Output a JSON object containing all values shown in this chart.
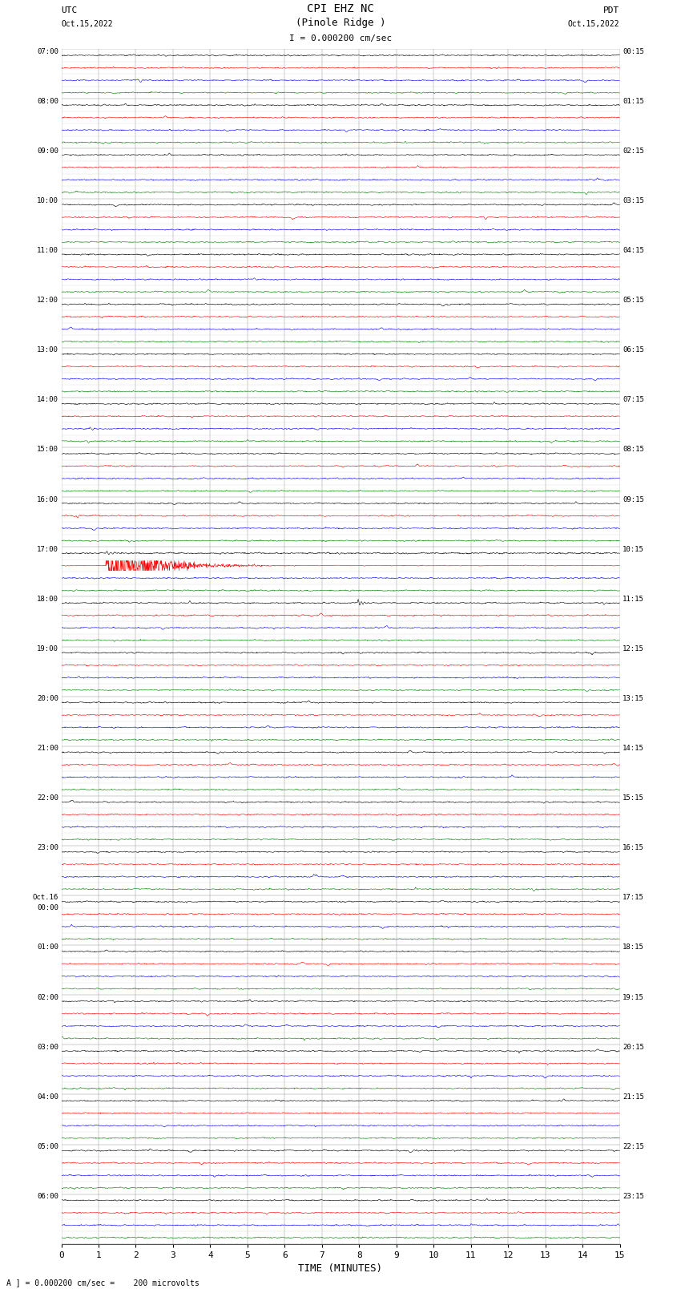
{
  "title_line1": "CPI EHZ NC",
  "title_line2": "(Pinole Ridge )",
  "scale_label": "I = 0.000200 cm/sec",
  "left_label_top": "UTC",
  "left_label_date": "Oct.15,2022",
  "right_label_top": "PDT",
  "right_label_date": "Oct.15,2022",
  "bottom_label": "TIME (MINUTES)",
  "bottom_note": "A ] = 0.000200 cm/sec =    200 microvolts",
  "utc_times": [
    "07:00",
    "08:00",
    "09:00",
    "10:00",
    "11:00",
    "12:00",
    "13:00",
    "14:00",
    "15:00",
    "16:00",
    "17:00",
    "18:00",
    "19:00",
    "20:00",
    "21:00",
    "22:00",
    "23:00",
    "Oct.16\n00:00",
    "01:00",
    "02:00",
    "03:00",
    "04:00",
    "05:00",
    "06:00"
  ],
  "pdt_times": [
    "00:15",
    "01:15",
    "02:15",
    "03:15",
    "04:15",
    "05:15",
    "06:15",
    "07:15",
    "08:15",
    "09:15",
    "10:15",
    "11:15",
    "12:15",
    "13:15",
    "14:15",
    "15:15",
    "16:15",
    "17:15",
    "18:15",
    "19:15",
    "20:15",
    "21:15",
    "22:15",
    "23:15"
  ],
  "n_rows": 24,
  "traces_per_row": 4,
  "colors": [
    "black",
    "red",
    "blue",
    "green"
  ],
  "bg_color": "white",
  "fig_width": 8.5,
  "fig_height": 16.13,
  "x_ticks": [
    0,
    1,
    2,
    3,
    4,
    5,
    6,
    7,
    8,
    9,
    10,
    11,
    12,
    13,
    14,
    15
  ],
  "eq_row": 10,
  "eq_trace": 1,
  "eq2_row": 11,
  "eq2_trace": 0
}
